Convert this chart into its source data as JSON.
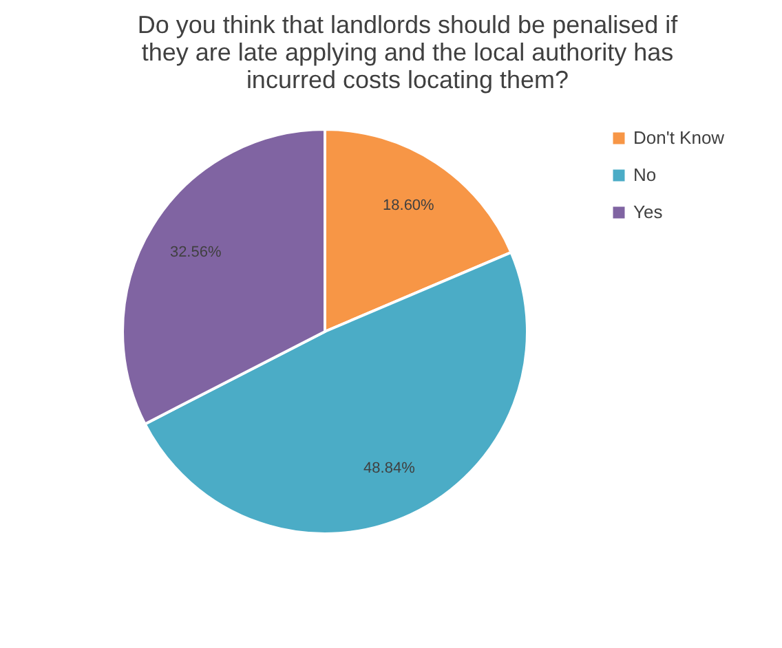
{
  "chart_data": {
    "type": "pie",
    "title": "Do you think that landlords should be penalised if they are late applying and the local authority has incurred costs locating them?",
    "categories": [
      "Don't Know",
      "No",
      "Yes"
    ],
    "values": [
      18.6,
      48.84,
      32.56
    ],
    "value_labels": [
      "18.60%",
      "48.84%",
      "32.56%"
    ],
    "colors": [
      "#f79646",
      "#4bacc6",
      "#8064a2"
    ],
    "legend": "right"
  }
}
